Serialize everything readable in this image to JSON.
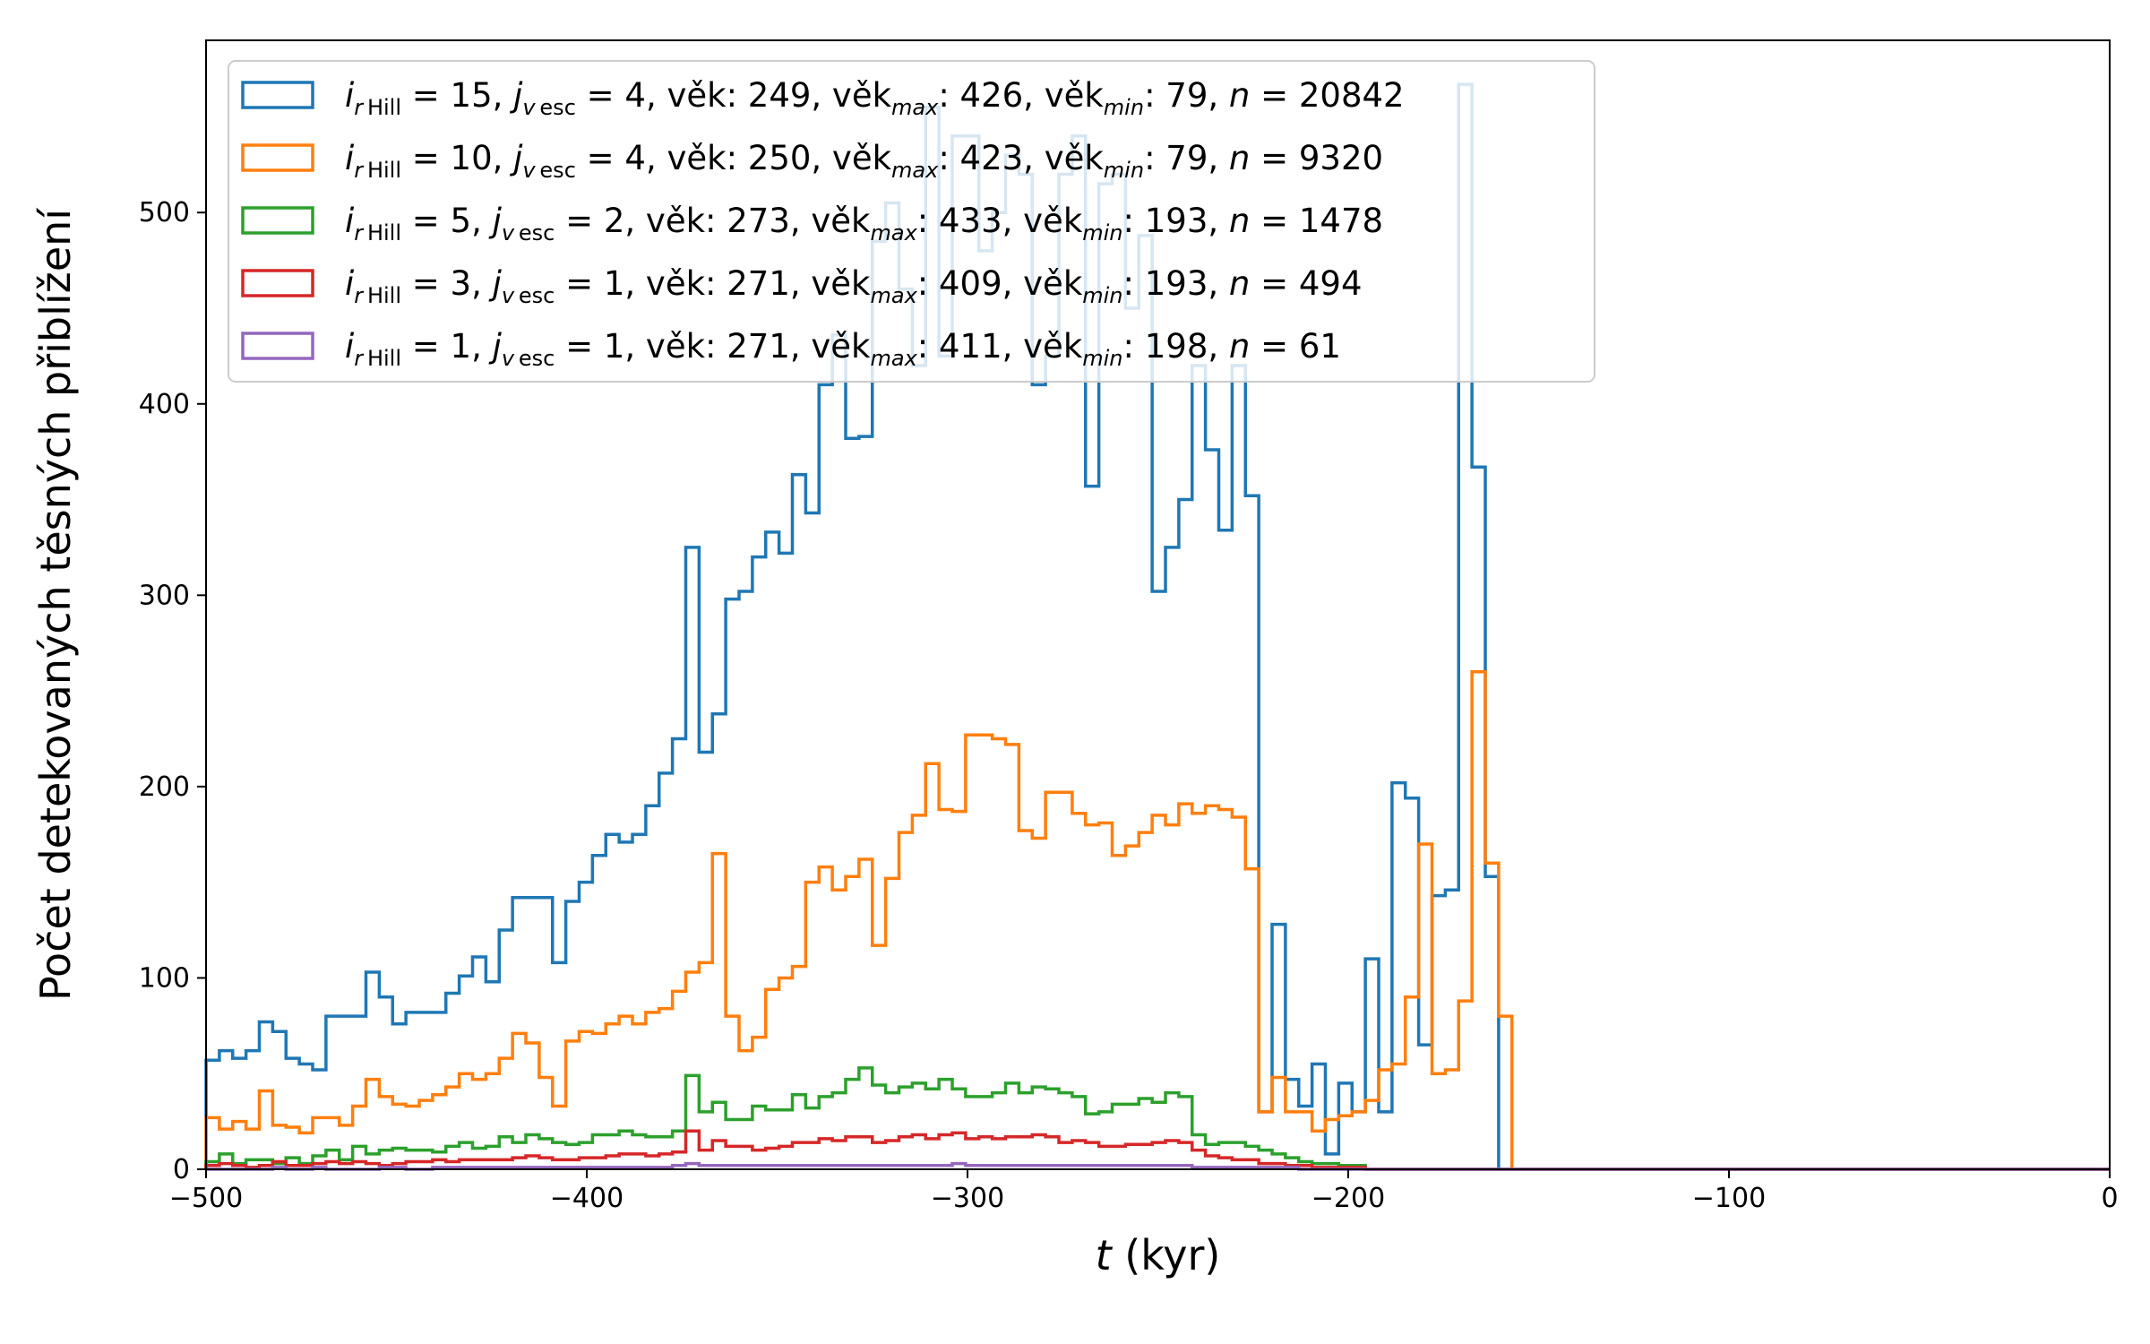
{
  "chart_data": {
    "type": "histogram",
    "xlabel_var": "t",
    "xlabel_unit": " (kyr)",
    "ylabel": "Počet detekovaných těsných přiblížení",
    "xlim": [
      -500,
      0
    ],
    "ylim": [
      0,
      590
    ],
    "x_ticks": [
      -500,
      -400,
      -300,
      -200,
      -100,
      0
    ],
    "x_tick_labels": [
      "−500",
      "−400",
      "−300",
      "−200",
      "−100",
      "0"
    ],
    "y_ticks": [
      0,
      100,
      200,
      300,
      400,
      500
    ],
    "y_tick_labels": [
      "0",
      "100",
      "200",
      "300",
      "400",
      "500"
    ],
    "bin_start": -500,
    "bin_width": 3.5,
    "legend_position": "top-left",
    "series": [
      {
        "color": "#1f77b4",
        "legend": {
          "i": "15",
          "j": "4",
          "vek": "249",
          "vekmax": "426",
          "vekmin": "79",
          "n": "20842"
        },
        "values": [
          57,
          62,
          58,
          62,
          77,
          72,
          58,
          55,
          52,
          80,
          80,
          80,
          103,
          90,
          76,
          82,
          82,
          82,
          92,
          101,
          111,
          98,
          125,
          142,
          142,
          142,
          108,
          140,
          150,
          164,
          175,
          171,
          175,
          190,
          207,
          225,
          325,
          218,
          238,
          298,
          302,
          320,
          333,
          322,
          363,
          343,
          410,
          436,
          382,
          383,
          485,
          505,
          460,
          420,
          555,
          425,
          540,
          540,
          480,
          500,
          530,
          520,
          410,
          425,
          520,
          540,
          357,
          515,
          520,
          450,
          488,
          302,
          325,
          350,
          420,
          376,
          334,
          420,
          352,
          30,
          128,
          47,
          33,
          55,
          8,
          45,
          30,
          110,
          30,
          202,
          194,
          65,
          143,
          146,
          567,
          367,
          153,
          0
        ]
      },
      {
        "color": "#ff7f0e",
        "legend": {
          "i": "10",
          "j": "4",
          "vek": "250",
          "vekmax": "423",
          "vekmin": "79",
          "n": "9320"
        },
        "values": [
          27,
          21,
          25,
          21,
          41,
          23,
          22,
          19,
          27,
          27,
          23,
          33,
          47,
          38,
          34,
          33,
          36,
          39,
          43,
          50,
          47,
          50,
          58,
          71,
          66,
          48,
          33,
          67,
          72,
          71,
          76,
          80,
          76,
          82,
          84,
          93,
          103,
          108,
          165,
          80,
          62,
          69,
          94,
          100,
          106,
          150,
          158,
          146,
          153,
          162,
          117,
          152,
          176,
          185,
          212,
          188,
          187,
          227,
          227,
          225,
          222,
          177,
          173,
          197,
          197,
          186,
          180,
          181,
          164,
          169,
          176,
          185,
          180,
          191,
          186,
          190,
          188,
          184,
          157,
          30,
          48,
          30,
          30,
          20,
          26,
          28,
          30,
          36,
          52,
          55,
          90,
          170,
          50,
          52,
          88,
          260,
          160,
          80,
          0
        ]
      },
      {
        "color": "#2ca02c",
        "legend": {
          "i": " 5",
          "j": "2",
          "vek": "273",
          "vekmax": "433",
          "vekmin": "193",
          "n": "1478"
        },
        "values": [
          4,
          8,
          3,
          5,
          5,
          3,
          6,
          3,
          7,
          10,
          5,
          12,
          8,
          10,
          11,
          10,
          10,
          9,
          12,
          14,
          11,
          12,
          17,
          14,
          18,
          16,
          14,
          13,
          14,
          18,
          18,
          20,
          18,
          17,
          17,
          20,
          49,
          30,
          35,
          26,
          26,
          33,
          31,
          31,
          39,
          32,
          38,
          40,
          47,
          53,
          44,
          40,
          43,
          45,
          42,
          47,
          42,
          38,
          38,
          40,
          45,
          40,
          43,
          42,
          40,
          38,
          29,
          30,
          34,
          34,
          37,
          35,
          40,
          38,
          18,
          13,
          14,
          14,
          12,
          10,
          8,
          6,
          4,
          3,
          3,
          2,
          2,
          0,
          0,
          0,
          0,
          0,
          0,
          0,
          0,
          0,
          0,
          0
        ]
      },
      {
        "color": "#d62728",
        "legend": {
          "i": " 3",
          "j": "1",
          "vek": "271",
          "vekmax": "409",
          "vekmin": "193",
          "n": "494"
        },
        "values": [
          2,
          3,
          2,
          1,
          2,
          4,
          2,
          2,
          3,
          4,
          3,
          4,
          3,
          2,
          3,
          4,
          4,
          5,
          4,
          5,
          5,
          5,
          5,
          6,
          7,
          6,
          5,
          5,
          6,
          6,
          7,
          8,
          8,
          7,
          8,
          9,
          20,
          10,
          15,
          12,
          12,
          10,
          11,
          12,
          14,
          14,
          16,
          15,
          17,
          17,
          14,
          15,
          17,
          18,
          16,
          18,
          19,
          16,
          17,
          16,
          17,
          17,
          18,
          17,
          14,
          15,
          14,
          12,
          12,
          13,
          13,
          14,
          15,
          14,
          10,
          7,
          6,
          5,
          5,
          3,
          3,
          2,
          2,
          1,
          1,
          1,
          1,
          0,
          0,
          0,
          0,
          0,
          0,
          0,
          0,
          0,
          0,
          0
        ]
      },
      {
        "color": "#9467bd",
        "legend": {
          "i": " 1",
          "j": "1",
          "vek": "271",
          "vekmax": "411",
          "vekmin": "198",
          "n": "61"
        },
        "values": [
          0,
          0,
          0,
          0,
          0,
          1,
          0,
          0,
          1,
          0,
          0,
          0,
          0,
          1,
          1,
          0,
          0,
          1,
          1,
          1,
          1,
          1,
          1,
          1,
          1,
          1,
          1,
          1,
          1,
          1,
          1,
          1,
          1,
          1,
          1,
          2,
          3,
          2,
          2,
          2,
          2,
          2,
          2,
          2,
          2,
          2,
          2,
          2,
          2,
          2,
          2,
          2,
          2,
          2,
          2,
          2,
          3,
          2,
          2,
          2,
          2,
          2,
          2,
          2,
          2,
          2,
          2,
          2,
          2,
          2,
          2,
          2,
          2,
          2,
          1,
          1,
          1,
          1,
          1,
          1,
          1,
          1,
          0,
          0,
          0,
          0,
          0,
          0,
          0,
          0,
          0,
          0,
          0,
          0,
          0,
          0,
          0,
          0
        ]
      }
    ]
  }
}
